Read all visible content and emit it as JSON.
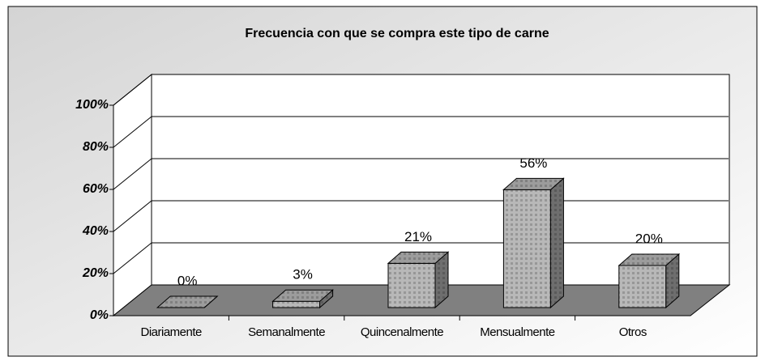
{
  "chart_data": {
    "type": "bar3d",
    "title": "Frecuencia con que se compra este tipo de carne",
    "categories": [
      "Diariamente",
      "Semanalmente",
      "Quincenalmente",
      "Mensualmente",
      "Otros"
    ],
    "values": [
      0,
      3,
      21,
      56,
      20
    ],
    "value_labels": [
      "0%",
      "3%",
      "21%",
      "56%",
      "20%"
    ],
    "color": "#b8b8b8",
    "ylim": [
      0,
      100
    ],
    "yticks": [
      {
        "value": 0,
        "label": "0%"
      },
      {
        "value": 20,
        "label": "20%"
      },
      {
        "value": 40,
        "label": "40%"
      },
      {
        "value": 60,
        "label": "60%"
      },
      {
        "value": 80,
        "label": "80%"
      },
      {
        "value": 100,
        "label": "100%"
      }
    ],
    "grid": true
  }
}
